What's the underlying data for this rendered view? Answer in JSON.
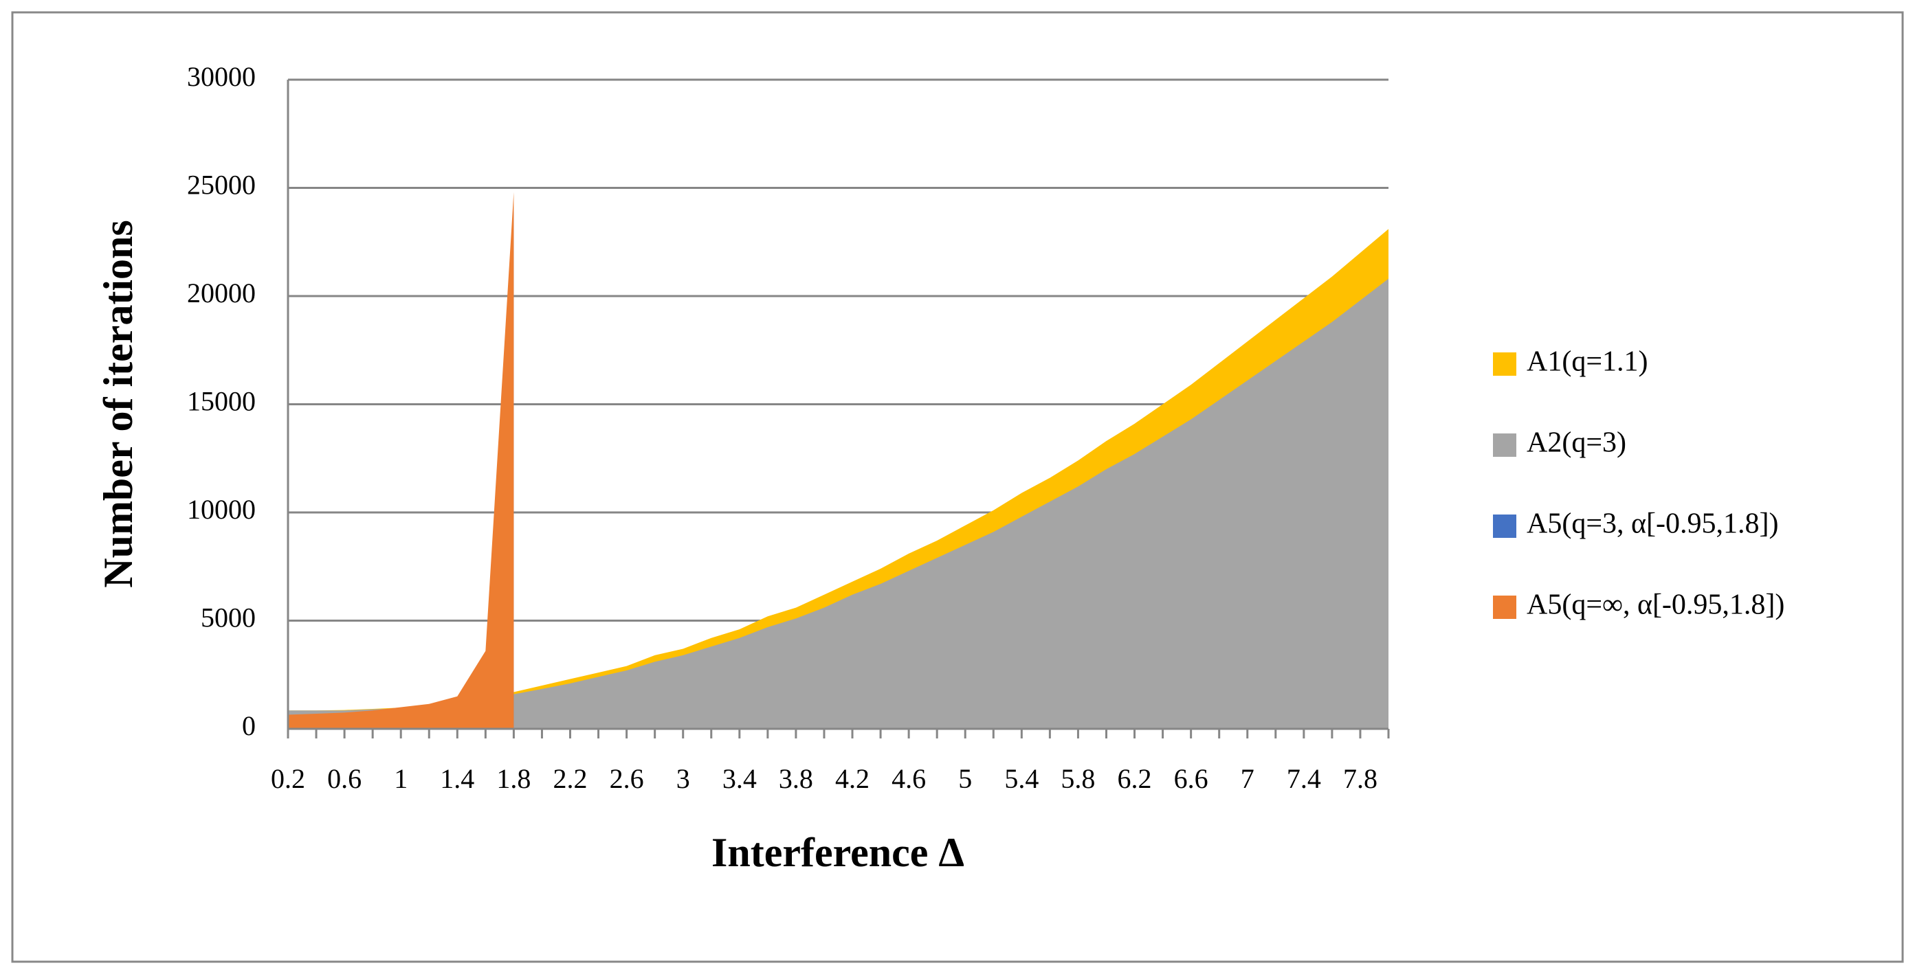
{
  "chart_data": {
    "type": "area",
    "x_label": "Interference Δ",
    "y_label": "Number of iterations",
    "categories": [
      "0.2",
      null,
      "0.6",
      null,
      "1",
      null,
      "1.4",
      null,
      "1.8",
      null,
      "2.2",
      null,
      "2.6",
      null,
      "3",
      null,
      "3.4",
      null,
      "3.8",
      null,
      "4.2",
      null,
      "4.6",
      null,
      "5",
      null,
      "5.4",
      null,
      "5.8",
      null,
      "6.2",
      null,
      "6.6",
      null,
      "7",
      null,
      "7.4",
      null,
      "7.8",
      null
    ],
    "series": [
      {
        "name": "A1(q=1.1)",
        "color": "#FFC000",
        "values": [
          850,
          850,
          870,
          920,
          980,
          1100,
          1250,
          1500,
          1700,
          2000,
          2300,
          2600,
          2900,
          3400,
          3700,
          4200,
          4600,
          5200,
          5600,
          6200,
          6800,
          7400,
          8100,
          8700,
          9400,
          10100,
          10900,
          11600,
          12400,
          13300,
          14100,
          15000,
          15900,
          16900,
          17900,
          18900,
          19900,
          20900,
          22000,
          23100
        ]
      },
      {
        "name": "A2(q=3)",
        "color": "#A5A5A5",
        "values": [
          850,
          850,
          850,
          900,
          950,
          1050,
          1200,
          1400,
          1600,
          1840,
          2100,
          2400,
          2700,
          3100,
          3400,
          3800,
          4200,
          4700,
          5100,
          5600,
          6200,
          6700,
          7300,
          7900,
          8500,
          9100,
          9800,
          10500,
          11200,
          12000,
          12700,
          13500,
          14300,
          15200,
          16100,
          17000,
          17900,
          18800,
          19800,
          20800
        ]
      },
      {
        "name": "A5(q=3, α[-0.95,1.8])",
        "color": "#4472C4",
        "values": [
          600,
          650,
          700,
          800,
          950,
          1100,
          1400,
          3400,
          24000,
          null,
          null,
          null,
          null,
          null,
          null,
          null,
          null,
          null,
          null,
          null,
          null,
          null,
          null,
          null,
          null,
          null,
          null,
          null,
          null,
          null,
          null,
          null,
          null,
          null,
          null,
          null,
          null,
          null,
          null,
          null
        ]
      },
      {
        "name": "A5(q=∞, α[-0.95,1.8])",
        "color": "#ED7D31",
        "values": [
          650,
          700,
          750,
          850,
          1000,
          1150,
          1500,
          3600,
          24800,
          null,
          null,
          null,
          null,
          null,
          null,
          null,
          null,
          null,
          null,
          null,
          null,
          null,
          null,
          null,
          null,
          null,
          null,
          null,
          null,
          null,
          null,
          null,
          null,
          null,
          null,
          null,
          null,
          null,
          null,
          null
        ]
      }
    ],
    "ylim": [
      0,
      30000
    ],
    "yticks": [
      0,
      5000,
      10000,
      15000,
      20000,
      25000,
      30000
    ],
    "grid": true,
    "legend": "right"
  }
}
